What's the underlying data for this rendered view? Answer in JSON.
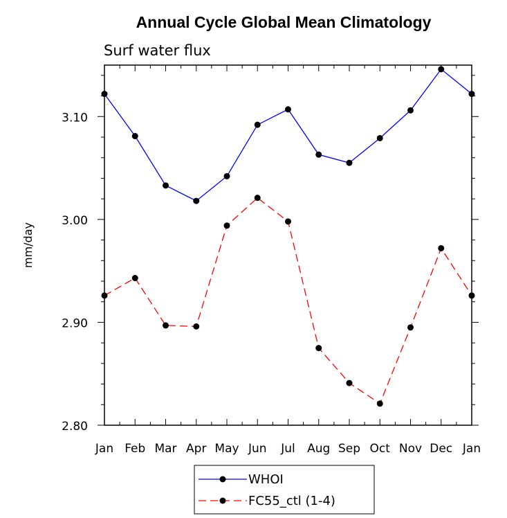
{
  "chart_data": {
    "type": "line",
    "title": "Annual Cycle Global Mean Climatology",
    "subtitle": "Surf water flux",
    "ylabel": "mm/day",
    "xlabel": "",
    "categories": [
      "Jan",
      "Feb",
      "Mar",
      "Apr",
      "May",
      "Jun",
      "Jul",
      "Aug",
      "Sep",
      "Oct",
      "Nov",
      "Dec",
      "Jan"
    ],
    "ylim": [
      2.8,
      3.15
    ],
    "yticks": [
      2.8,
      2.9,
      3.0,
      3.1
    ],
    "ytick_labels": [
      "2.80",
      "2.90",
      "3.00",
      "3.10"
    ],
    "grid": false,
    "legend_position": "bottom",
    "series": [
      {
        "name": "WHOI",
        "color": "#0000ff",
        "line_style": "solid",
        "marker": "filled-circle",
        "values": [
          3.122,
          3.081,
          3.033,
          3.018,
          3.042,
          3.092,
          3.107,
          3.063,
          3.055,
          3.079,
          3.106,
          3.146,
          3.122
        ]
      },
      {
        "name": "FC55_ctl (1-4)",
        "color": "#ff0000",
        "line_style": "dashed",
        "marker": "filled-circle",
        "values": [
          2.926,
          2.943,
          2.897,
          2.896,
          2.994,
          3.021,
          2.998,
          2.875,
          2.841,
          2.821,
          2.895,
          2.972,
          2.926
        ]
      }
    ]
  }
}
